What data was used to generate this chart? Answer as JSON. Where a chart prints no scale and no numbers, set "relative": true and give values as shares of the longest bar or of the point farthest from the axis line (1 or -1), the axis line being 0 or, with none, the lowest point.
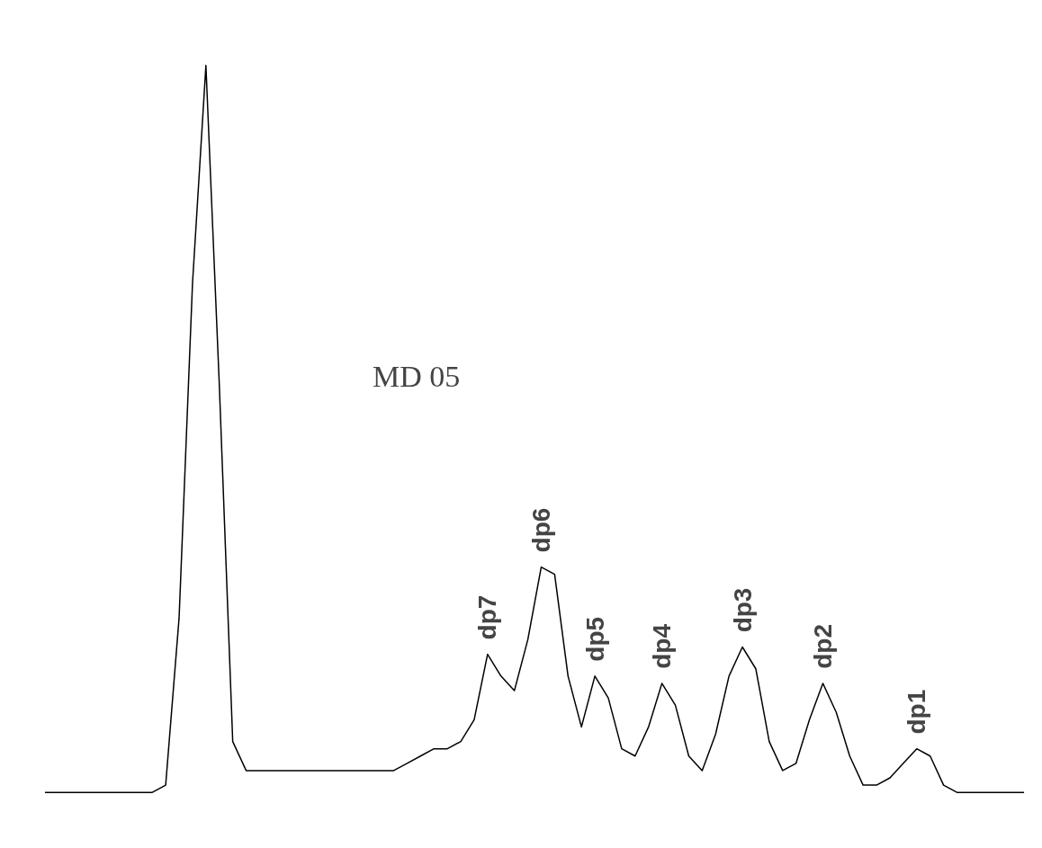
{
  "chart_data": {
    "type": "line",
    "relative": true,
    "tick_labels": false,
    "grid": false,
    "marker": "none",
    "line_style": "solid",
    "categories": [
      null,
      null,
      null,
      null,
      null,
      null,
      null,
      null,
      null,
      null,
      null,
      null,
      null,
      null,
      null,
      null,
      null,
      null,
      null,
      null,
      null,
      null,
      null,
      null,
      null,
      null,
      null,
      null,
      null,
      null,
      null,
      null,
      null,
      null,
      null,
      null,
      null,
      null,
      null,
      null,
      null,
      null,
      null,
      null,
      null,
      null,
      null,
      null,
      null,
      null,
      null,
      null,
      null,
      null,
      null,
      null,
      null,
      null,
      null,
      null,
      null,
      null,
      null,
      null,
      null,
      null,
      null,
      null,
      null,
      null,
      null,
      null,
      null,
      null
    ],
    "series": [
      {
        "color": "#000000",
        "values": [
          0,
          0,
          0,
          0,
          0,
          0,
          0,
          0,
          0,
          0.01,
          0.24,
          0.7,
          1.0,
          0.56,
          0.07,
          0.03,
          0.03,
          0.03,
          0.03,
          0.03,
          0.03,
          0.03,
          0.03,
          0.03,
          0.03,
          0.03,
          0.03,
          0.04,
          0.05,
          0.06,
          0.06,
          0.07,
          0.1,
          0.19,
          0.16,
          0.14,
          0.21,
          0.31,
          0.3,
          0.16,
          0.09,
          0.16,
          0.13,
          0.06,
          0.05,
          0.09,
          0.15,
          0.12,
          0.05,
          0.03,
          0.08,
          0.16,
          0.2,
          0.17,
          0.07,
          0.03,
          0.04,
          0.1,
          0.15,
          0.11,
          0.05,
          0.01,
          0.01,
          0.02,
          0.04,
          0.06,
          0.05,
          0.01,
          0,
          0,
          0,
          0,
          0,
          0
        ]
      }
    ],
    "annotations": [
      "MD 05",
      "dp7",
      "dp6",
      "dp5",
      "dp4",
      "dp3",
      "dp2",
      "dp1"
    ]
  }
}
